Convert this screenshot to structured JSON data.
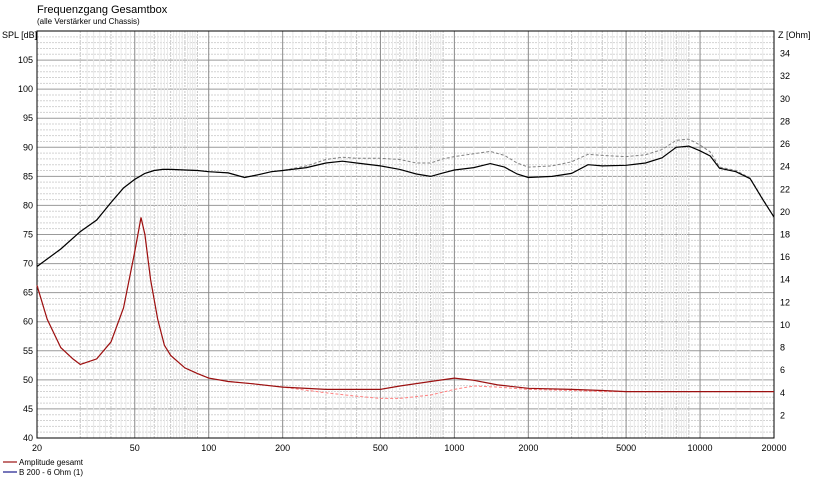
{
  "chart_data": {
    "type": "line",
    "title": "Frequenzgang Gesamtbox",
    "subtitle": "(alle Verstärker und Chassis)",
    "ylabel": "SPL [dB]",
    "y2label": "Z [Ohm]",
    "xlabel": "",
    "x_scale": "log",
    "xlim": [
      20,
      20000
    ],
    "ylim": [
      40,
      110
    ],
    "y2lim": [
      0,
      36
    ],
    "x_ticks": [
      20,
      50,
      100,
      200,
      500,
      1000,
      2000,
      5000,
      10000,
      20000
    ],
    "y_ticks": [
      40,
      45,
      50,
      55,
      60,
      65,
      70,
      75,
      80,
      85,
      90,
      95,
      100,
      105
    ],
    "y2_ticks": [
      2,
      4,
      6,
      8,
      10,
      12,
      14,
      16,
      18,
      20,
      22,
      24,
      26,
      28,
      30,
      32,
      34
    ],
    "grid": true,
    "legend_position": "bottom-left",
    "series": [
      {
        "name": "Amplitude gesamt",
        "axis": "left",
        "color": "#000000",
        "style": "solid",
        "x": [
          20,
          25,
          30,
          35,
          40,
          45,
          50,
          55,
          60,
          65,
          70,
          80,
          90,
          100,
          120,
          140,
          160,
          180,
          200,
          250,
          300,
          350,
          400,
          500,
          600,
          700,
          800,
          900,
          1000,
          1200,
          1400,
          1600,
          1800,
          2000,
          2500,
          3000,
          3500,
          4000,
          5000,
          6000,
          7000,
          8000,
          9000,
          10000,
          11000,
          12000,
          14000,
          16000,
          18000,
          20000
        ],
        "y": [
          69.5,
          72.5,
          75.5,
          77.5,
          80.5,
          83,
          84.5,
          85.5,
          86,
          86.2,
          86.2,
          86.1,
          86,
          85.8,
          85.6,
          84.8,
          85.3,
          85.8,
          86,
          86.5,
          87.3,
          87.6,
          87.3,
          86.8,
          86.2,
          85.4,
          85,
          85.6,
          86.1,
          86.5,
          87.2,
          86.6,
          85.4,
          84.8,
          85,
          85.5,
          87,
          86.8,
          86.9,
          87.3,
          88.2,
          90,
          90.2,
          89.4,
          88.5,
          86.4,
          85.8,
          84.6,
          81,
          78
        ]
      },
      {
        "name": "B 200 - 6 Ohm (1)",
        "axis": "right",
        "color": "#9b1010",
        "style": "solid",
        "x": [
          20,
          22,
          25,
          28,
          30,
          35,
          40,
          45,
          50,
          53,
          55,
          58,
          62,
          66,
          70,
          80,
          90,
          100,
          120,
          150,
          200,
          300,
          400,
          500,
          600,
          800,
          1000,
          1200,
          1500,
          2000,
          3000,
          4000,
          5000,
          7000,
          10000,
          20000
        ],
        "y": [
          13.5,
          10.5,
          8,
          7,
          6.5,
          7,
          8.5,
          11.5,
          16.5,
          19.5,
          18,
          14,
          10.5,
          8.2,
          7.3,
          6.2,
          5.7,
          5.3,
          5,
          4.8,
          4.5,
          4.3,
          4.3,
          4.3,
          4.6,
          5,
          5.3,
          5.1,
          4.7,
          4.4,
          4.3,
          4.2,
          4.1,
          4.1,
          4.1,
          4.1
        ]
      },
      {
        "name": "",
        "axis": "left",
        "color": "#808080",
        "style": "dashed",
        "x": [
          20,
          25,
          30,
          35,
          40,
          45,
          50,
          55,
          60,
          65,
          70,
          80,
          90,
          100,
          120,
          140,
          160,
          180,
          200,
          250,
          300,
          350,
          400,
          500,
          600,
          700,
          800,
          900,
          1000,
          1200,
          1400,
          1600,
          1800,
          2000,
          2500,
          3000,
          3500,
          4000,
          5000,
          6000,
          7000,
          8000,
          9000,
          10000,
          11000,
          12000,
          14000,
          16000,
          18000,
          20000
        ],
        "y": [
          69.5,
          72.5,
          75.5,
          77.5,
          80.5,
          83,
          84.5,
          85.5,
          86,
          86.2,
          86.2,
          86.1,
          86,
          85.8,
          85.6,
          84.8,
          85.3,
          85.8,
          86,
          86.8,
          87.9,
          88.3,
          88.1,
          88.1,
          87.9,
          87.3,
          87.3,
          88,
          88.4,
          88.9,
          89.3,
          88.6,
          87.3,
          86.6,
          86.8,
          87.5,
          88.8,
          88.6,
          88.4,
          88.7,
          89.6,
          91.2,
          91.4,
          90.4,
          89.2,
          86.6,
          86,
          84.7,
          81.1,
          78
        ]
      },
      {
        "name": "",
        "axis": "right",
        "color": "#ff8080",
        "style": "dashed",
        "x": [
          20,
          22,
          25,
          28,
          30,
          35,
          40,
          45,
          50,
          53,
          55,
          58,
          62,
          66,
          70,
          80,
          90,
          100,
          120,
          150,
          200,
          300,
          400,
          500,
          600,
          800,
          1000,
          1200,
          1500,
          2000,
          3000,
          4000,
          5000,
          7000,
          10000,
          20000
        ],
        "y": [
          13.5,
          10.5,
          8,
          7,
          6.5,
          7,
          8.5,
          11.5,
          16.5,
          19.5,
          18,
          14,
          10.5,
          8.2,
          7.3,
          6.2,
          5.7,
          5.3,
          5,
          4.8,
          4.5,
          4,
          3.7,
          3.5,
          3.5,
          3.8,
          4.3,
          4.6,
          4.5,
          4.3,
          4.2,
          4.1,
          4.1,
          4.1,
          4.1,
          4.1
        ]
      }
    ]
  }
}
